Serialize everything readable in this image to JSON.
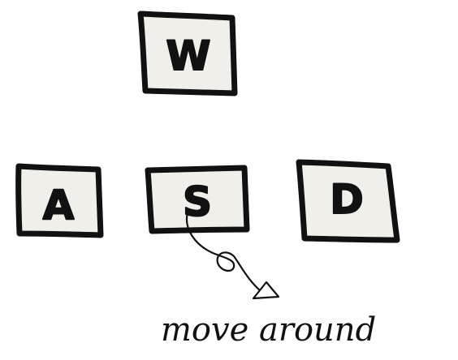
{
  "keys": {
    "w": {
      "label": "W"
    },
    "a": {
      "label": "A"
    },
    "s": {
      "label": "S"
    },
    "d": {
      "label": "D"
    }
  },
  "annotation": {
    "caption": "move around"
  },
  "colors": {
    "key_fill": "#f1efe9",
    "ink": "#111111",
    "background": "#ffffff"
  }
}
